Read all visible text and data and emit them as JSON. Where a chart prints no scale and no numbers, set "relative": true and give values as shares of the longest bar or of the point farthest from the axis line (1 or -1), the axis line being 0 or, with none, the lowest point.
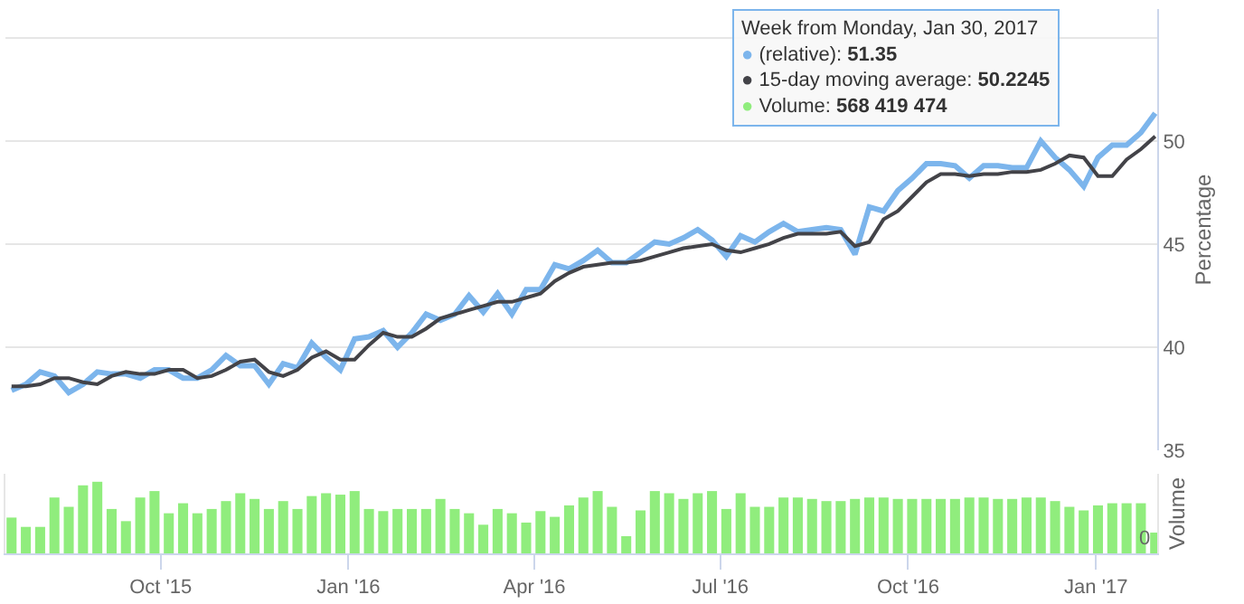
{
  "chart_data": [
    {
      "type": "line",
      "ylabel": "Percentage",
      "legend": false,
      "grid": "y",
      "marker": "none",
      "line_style": "solid",
      "tick_labels": "y",
      "x": [
        "2015-07-20",
        "2015-07-27",
        "2015-08-03",
        "2015-08-10",
        "2015-08-17",
        "2015-08-24",
        "2015-08-31",
        "2015-09-07",
        "2015-09-14",
        "2015-09-21",
        "2015-09-28",
        "2015-10-05",
        "2015-10-12",
        "2015-10-19",
        "2015-10-26",
        "2015-11-02",
        "2015-11-09",
        "2015-11-16",
        "2015-11-23",
        "2015-11-30",
        "2015-12-07",
        "2015-12-14",
        "2015-12-21",
        "2015-12-28",
        "2016-01-04",
        "2016-01-11",
        "2016-01-18",
        "2016-01-25",
        "2016-02-01",
        "2016-02-08",
        "2016-02-15",
        "2016-02-22",
        "2016-02-29",
        "2016-03-07",
        "2016-03-14",
        "2016-03-21",
        "2016-03-28",
        "2016-04-04",
        "2016-04-11",
        "2016-04-18",
        "2016-04-25",
        "2016-05-02",
        "2016-05-09",
        "2016-05-16",
        "2016-05-23",
        "2016-05-30",
        "2016-06-06",
        "2016-06-13",
        "2016-06-20",
        "2016-06-27",
        "2016-07-04",
        "2016-07-11",
        "2016-07-18",
        "2016-07-25",
        "2016-08-01",
        "2016-08-08",
        "2016-08-15",
        "2016-08-22",
        "2016-08-29",
        "2016-09-05",
        "2016-09-12",
        "2016-09-19",
        "2016-09-26",
        "2016-10-03",
        "2016-10-10",
        "2016-10-17",
        "2016-10-24",
        "2016-10-31",
        "2016-11-07",
        "2016-11-14",
        "2016-11-21",
        "2016-11-28",
        "2016-12-05",
        "2016-12-12",
        "2016-12-19",
        "2016-12-26",
        "2017-01-02",
        "2017-01-09",
        "2017-01-16",
        "2017-01-23",
        "2017-01-30"
      ],
      "xlim": [
        "2015-07-17",
        "2017-01-31"
      ],
      "ylim": [
        35,
        56.4
      ],
      "yticks": [
        35,
        40,
        45,
        50,
        {
          "value": 55,
          "label": null
        }
      ],
      "series": [
        {
          "color": "#7cb5ec",
          "values": [
            37.9,
            38.2,
            38.8,
            38.6,
            37.8,
            38.2,
            38.8,
            38.7,
            38.7,
            38.5,
            38.9,
            38.9,
            38.5,
            38.5,
            38.9,
            39.6,
            39.1,
            39.1,
            38.2,
            39.2,
            39.0,
            40.2,
            39.5,
            38.9,
            40.4,
            40.5,
            40.8,
            40.0,
            40.7,
            41.6,
            41.3,
            41.6,
            42.5,
            41.7,
            42.6,
            41.6,
            42.8,
            42.8,
            44.0,
            43.8,
            44.2,
            44.7,
            44.1,
            44.1,
            44.6,
            45.1,
            45.0,
            45.3,
            45.7,
            45.2,
            44.4,
            45.4,
            45.1,
            45.6,
            46.0,
            45.6,
            45.7,
            45.8,
            45.7,
            44.5,
            46.8,
            46.6,
            47.6,
            48.2,
            48.9,
            48.9,
            48.8,
            48.2,
            48.8,
            48.8,
            48.7,
            48.7,
            50.0,
            49.2,
            48.6,
            47.8,
            49.2,
            49.8,
            49.8,
            50.4,
            51.35
          ]
        },
        {
          "color": "#434348",
          "values": [
            38.1,
            38.1,
            38.2,
            38.5,
            38.5,
            38.3,
            38.2,
            38.6,
            38.8,
            38.7,
            38.7,
            38.9,
            38.9,
            38.5,
            38.6,
            38.9,
            39.3,
            39.4,
            38.8,
            38.6,
            38.9,
            39.5,
            39.8,
            39.4,
            39.4,
            40.1,
            40.7,
            40.5,
            40.5,
            40.9,
            41.4,
            41.6,
            41.8,
            42.0,
            42.2,
            42.2,
            42.4,
            42.6,
            43.2,
            43.6,
            43.9,
            44.0,
            44.1,
            44.1,
            44.2,
            44.4,
            44.6,
            44.8,
            44.9,
            45.0,
            44.7,
            44.6,
            44.8,
            45.0,
            45.3,
            45.5,
            45.5,
            45.5,
            45.6,
            44.9,
            45.1,
            46.2,
            46.6,
            47.3,
            48.0,
            48.4,
            48.4,
            48.3,
            48.4,
            48.4,
            48.5,
            48.5,
            48.6,
            48.9,
            49.3,
            49.2,
            48.3,
            48.3,
            49.1,
            49.6,
            50.2245
          ]
        }
      ],
      "annotations": [
        "Week from Monday, Jan 30, 2017",
        "● (relative): 51.35",
        "● 15-day moving average: 50.2245",
        "● Volume: 568 419 474"
      ]
    },
    {
      "type": "bar",
      "ylabel": "Volume",
      "relative": true,
      "legend": false,
      "tick_labels": "x",
      "x": [
        "2015-07-20",
        "2015-07-27",
        "2015-08-03",
        "2015-08-10",
        "2015-08-17",
        "2015-08-24",
        "2015-08-31",
        "2015-09-07",
        "2015-09-14",
        "2015-09-21",
        "2015-09-28",
        "2015-10-05",
        "2015-10-12",
        "2015-10-19",
        "2015-10-26",
        "2015-11-02",
        "2015-11-09",
        "2015-11-16",
        "2015-11-23",
        "2015-11-30",
        "2015-12-07",
        "2015-12-14",
        "2015-12-21",
        "2015-12-28",
        "2016-01-04",
        "2016-01-11",
        "2016-01-18",
        "2016-01-25",
        "2016-02-01",
        "2016-02-08",
        "2016-02-15",
        "2016-02-22",
        "2016-02-29",
        "2016-03-07",
        "2016-03-14",
        "2016-03-21",
        "2016-03-28",
        "2016-04-04",
        "2016-04-11",
        "2016-04-18",
        "2016-04-25",
        "2016-05-02",
        "2016-05-09",
        "2016-05-16",
        "2016-05-23",
        "2016-05-30",
        "2016-06-06",
        "2016-06-13",
        "2016-06-20",
        "2016-06-27",
        "2016-07-04",
        "2016-07-11",
        "2016-07-18",
        "2016-07-25",
        "2016-08-01",
        "2016-08-08",
        "2016-08-15",
        "2016-08-22",
        "2016-08-29",
        "2016-09-05",
        "2016-09-12",
        "2016-09-19",
        "2016-09-26",
        "2016-10-03",
        "2016-10-10",
        "2016-10-17",
        "2016-10-24",
        "2016-10-31",
        "2016-11-07",
        "2016-11-14",
        "2016-11-21",
        "2016-11-28",
        "2016-12-05",
        "2016-12-12",
        "2016-12-19",
        "2016-12-26",
        "2017-01-02",
        "2017-01-09",
        "2017-01-16",
        "2017-01-23",
        "2017-01-30"
      ],
      "xlim": [
        "2015-07-17",
        "2017-01-31"
      ],
      "xticks": [
        {
          "value": "2015-10-01",
          "label": "Oct '15"
        },
        {
          "value": "2016-01-01",
          "label": "Jan '16"
        },
        {
          "value": "2016-04-01",
          "label": "Apr '16"
        },
        {
          "value": "2016-07-01",
          "label": "Jul '16"
        },
        {
          "value": "2016-10-01",
          "label": "Oct '16"
        },
        {
          "value": "2017-01-01",
          "label": "Jan '17"
        }
      ],
      "series": [
        {
          "color": "#90ed7d",
          "values": [
            0.5,
            0.37,
            0.37,
            0.78,
            0.65,
            0.95,
            1,
            0.62,
            0.45,
            0.78,
            0.87,
            0.56,
            0.7,
            0.56,
            0.62,
            0.73,
            0.84,
            0.76,
            0.62,
            0.73,
            0.62,
            0.8,
            0.84,
            0.82,
            0.87,
            0.62,
            0.59,
            0.62,
            0.62,
            0.62,
            0.76,
            0.62,
            0.56,
            0.4,
            0.62,
            0.56,
            0.43,
            0.59,
            0.51,
            0.67,
            0.78,
            0.87,
            0.65,
            0.24,
            0.6,
            0.87,
            0.84,
            0.76,
            0.84,
            0.87,
            0.62,
            0.84,
            0.65,
            0.65,
            0.78,
            0.78,
            0.76,
            0.73,
            0.73,
            0.76,
            0.78,
            0.78,
            0.76,
            0.76,
            0.76,
            0.76,
            0.76,
            0.78,
            0.78,
            0.76,
            0.76,
            0.78,
            0.78,
            0.73,
            0.65,
            0.6,
            0.67,
            0.7,
            0.7,
            0.7,
            0.29
          ]
        }
      ],
      "annotations": [
        "0"
      ]
    }
  ]
}
